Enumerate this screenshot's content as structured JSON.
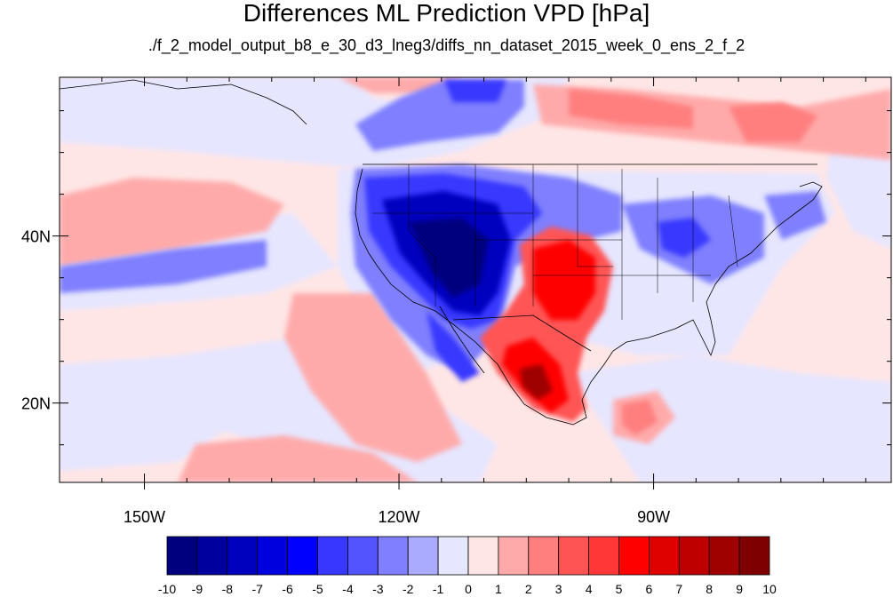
{
  "title": "Differences ML Prediction VPD [hPa]",
  "subtitle": "./f_2_model_output_b8_e_30_d3_lneg3/diffs_nn_dataset_2015_week_0_ens_2_f_2",
  "map": {
    "lon_range": [
      -160,
      -62
    ],
    "lat_range": [
      10.5,
      59
    ],
    "lon_ticks": [
      {
        "value": -150,
        "label": "150W"
      },
      {
        "value": -120,
        "label": "120W"
      },
      {
        "value": -90,
        "label": "90W"
      }
    ],
    "lat_ticks": [
      {
        "value": 20,
        "label": "20N"
      },
      {
        "value": 40,
        "label": "40N"
      }
    ]
  },
  "colorbar": {
    "colors": [
      "#00007f",
      "#00009f",
      "#0000bf",
      "#0000df",
      "#0000ff",
      "#3737ff",
      "#5454ff",
      "#7f7fff",
      "#aaaaff",
      "#e6e6ff",
      "#ffe6e6",
      "#ffaaaa",
      "#ff7f7f",
      "#ff5454",
      "#ff3737",
      "#ff0000",
      "#df0000",
      "#bf0000",
      "#9f0000",
      "#7f0000"
    ],
    "labels": [
      "-10",
      "-9",
      "-8",
      "-7",
      "-6",
      "-5",
      "-4",
      "-3",
      "-2",
      "-1",
      "0",
      "1",
      "2",
      "3",
      "4",
      "5",
      "6",
      "7",
      "8",
      "9",
      "10"
    ]
  }
}
